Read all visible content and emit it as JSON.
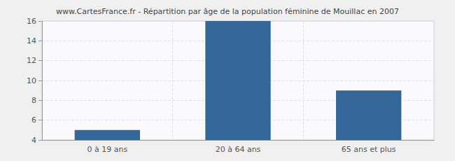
{
  "chart_data": {
    "type": "bar",
    "title": "www.CartesFrance.fr - Répartition par âge de la population féminine de Mouillac en 2007",
    "categories": [
      "0 à 19 ans",
      "20 à 64 ans",
      "65 ans et plus"
    ],
    "values": [
      5,
      16,
      9
    ],
    "color": "#336699",
    "ylim": [
      4,
      16
    ],
    "yticks": [
      4,
      6,
      8,
      10,
      12,
      14,
      16
    ],
    "grid": true
  }
}
